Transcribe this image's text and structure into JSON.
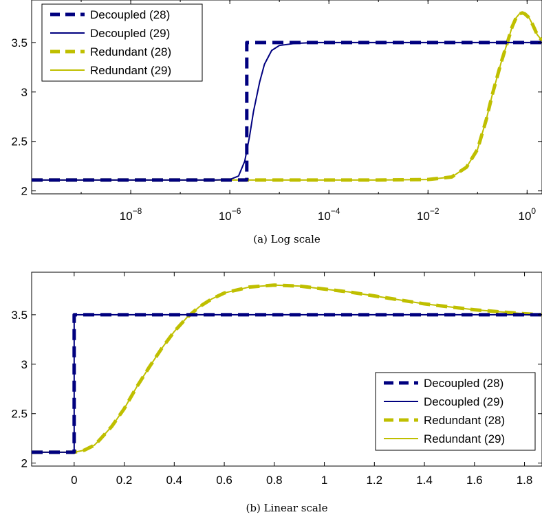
{
  "colors": {
    "decoupled": "#00007f",
    "redundant": "#bfbf00"
  },
  "chart_data": [
    {
      "type": "line",
      "caption": "(a)  Log scale",
      "xscale": "log",
      "xlim": [
        1e-10,
        2
      ],
      "ylim": [
        1.97,
        3.93
      ],
      "yticks": [
        2,
        2.5,
        3,
        3.5
      ],
      "ytick_labels": [
        "2",
        "2.5",
        "3",
        "3.5"
      ],
      "xticks": [
        {
          "value": 1e-08,
          "base": "10",
          "exp": "−8"
        },
        {
          "value": 1e-06,
          "base": "10",
          "exp": "−6"
        },
        {
          "value": 0.0001,
          "base": "10",
          "exp": "−4"
        },
        {
          "value": 0.01,
          "base": "10",
          "exp": "−2"
        },
        {
          "value": 1,
          "base": "10",
          "exp": "0"
        }
      ],
      "legend_position": "top-left",
      "series": [
        {
          "name": "Decoupled (28)",
          "color": "decoupled",
          "style": "dashed-thick",
          "points": [
            [
              1e-10,
              2.11
            ],
            [
              2.2e-06,
              2.11
            ],
            [
              2.2e-06,
              3.5
            ],
            [
              2,
              3.5
            ]
          ]
        },
        {
          "name": "Decoupled (29)",
          "color": "decoupled",
          "style": "solid",
          "points": [
            [
              1e-10,
              2.11
            ],
            [
              5e-07,
              2.11
            ],
            [
              1e-06,
              2.115
            ],
            [
              1.5e-06,
              2.15
            ],
            [
              2e-06,
              2.3
            ],
            [
              2.5e-06,
              2.55
            ],
            [
              3e-06,
              2.8
            ],
            [
              4e-06,
              3.1
            ],
            [
              5e-06,
              3.28
            ],
            [
              7e-06,
              3.42
            ],
            [
              1e-05,
              3.47
            ],
            [
              2e-05,
              3.49
            ],
            [
              5e-05,
              3.5
            ],
            [
              2,
              3.5
            ]
          ]
        },
        {
          "name": "Redundant (28)",
          "color": "redundant",
          "style": "dashed-thick",
          "points": [
            [
              1e-10,
              2.11
            ],
            [
              0.001,
              2.11
            ],
            [
              0.01,
              2.115
            ],
            [
              0.03,
              2.14
            ],
            [
              0.06,
              2.24
            ],
            [
              0.1,
              2.42
            ],
            [
              0.15,
              2.72
            ],
            [
              0.2,
              2.98
            ],
            [
              0.3,
              3.3
            ],
            [
              0.4,
              3.5
            ],
            [
              0.5,
              3.66
            ],
            [
              0.6,
              3.75
            ],
            [
              0.7,
              3.79
            ],
            [
              0.8,
              3.8
            ],
            [
              0.9,
              3.79
            ],
            [
              1.1,
              3.75
            ],
            [
              1.3,
              3.68
            ],
            [
              1.6,
              3.58
            ],
            [
              2,
              3.52
            ]
          ]
        },
        {
          "name": "Redundant (29)",
          "color": "redundant",
          "style": "solid",
          "points": [
            [
              1e-10,
              2.11
            ],
            [
              0.001,
              2.11
            ],
            [
              0.01,
              2.115
            ],
            [
              0.03,
              2.14
            ],
            [
              0.06,
              2.24
            ],
            [
              0.1,
              2.42
            ],
            [
              0.15,
              2.72
            ],
            [
              0.2,
              2.98
            ],
            [
              0.3,
              3.3
            ],
            [
              0.4,
              3.5
            ],
            [
              0.5,
              3.66
            ],
            [
              0.6,
              3.75
            ],
            [
              0.7,
              3.79
            ],
            [
              0.8,
              3.8
            ],
            [
              0.9,
              3.79
            ],
            [
              1.1,
              3.75
            ],
            [
              1.3,
              3.68
            ],
            [
              1.6,
              3.58
            ],
            [
              2,
              3.52
            ]
          ]
        }
      ]
    },
    {
      "type": "line",
      "caption": "(b)  Linear scale",
      "xscale": "linear",
      "xlim": [
        -0.17,
        1.87
      ],
      "ylim": [
        1.97,
        3.93
      ],
      "yticks": [
        2,
        2.5,
        3,
        3.5
      ],
      "ytick_labels": [
        "2",
        "2.5",
        "3",
        "3.5"
      ],
      "xticks": [
        0,
        0.2,
        0.4,
        0.6,
        0.8,
        1,
        1.2,
        1.4,
        1.6,
        1.8
      ],
      "xtick_labels": [
        "0",
        "0.2",
        "0.4",
        "0.6",
        "0.8",
        "1",
        "1.2",
        "1.4",
        "1.6",
        "1.8"
      ],
      "legend_position": "bottom-right",
      "series": [
        {
          "name": "Decoupled (28)",
          "color": "decoupled",
          "style": "dashed-thick",
          "points": [
            [
              -0.17,
              2.11
            ],
            [
              0.0,
              2.11
            ],
            [
              0.0,
              3.5
            ],
            [
              1.87,
              3.5
            ]
          ]
        },
        {
          "name": "Decoupled (29)",
          "color": "decoupled",
          "style": "solid",
          "points": [
            [
              -0.17,
              2.11
            ],
            [
              0.0,
              2.11
            ],
            [
              0.0,
              3.5
            ],
            [
              1.87,
              3.5
            ]
          ]
        },
        {
          "name": "Redundant (28)",
          "color": "redundant",
          "style": "dashed-thick",
          "points": [
            [
              -0.17,
              2.11
            ],
            [
              0.0,
              2.11
            ],
            [
              0.04,
              2.13
            ],
            [
              0.08,
              2.18
            ],
            [
              0.1,
              2.23
            ],
            [
              0.15,
              2.37
            ],
            [
              0.2,
              2.55
            ],
            [
              0.25,
              2.77
            ],
            [
              0.3,
              2.97
            ],
            [
              0.35,
              3.16
            ],
            [
              0.4,
              3.33
            ],
            [
              0.45,
              3.47
            ],
            [
              0.5,
              3.58
            ],
            [
              0.55,
              3.66
            ],
            [
              0.6,
              3.72
            ],
            [
              0.7,
              3.78
            ],
            [
              0.8,
              3.8
            ],
            [
              0.9,
              3.79
            ],
            [
              1.0,
              3.76
            ],
            [
              1.1,
              3.73
            ],
            [
              1.2,
              3.69
            ],
            [
              1.3,
              3.65
            ],
            [
              1.4,
              3.61
            ],
            [
              1.5,
              3.58
            ],
            [
              1.6,
              3.55
            ],
            [
              1.7,
              3.53
            ],
            [
              1.8,
              3.51
            ],
            [
              1.87,
              3.5
            ]
          ]
        },
        {
          "name": "Redundant (29)",
          "color": "redundant",
          "style": "solid",
          "points": [
            [
              -0.17,
              2.11
            ],
            [
              0.0,
              2.11
            ],
            [
              0.04,
              2.13
            ],
            [
              0.08,
              2.18
            ],
            [
              0.1,
              2.23
            ],
            [
              0.15,
              2.37
            ],
            [
              0.2,
              2.55
            ],
            [
              0.25,
              2.77
            ],
            [
              0.3,
              2.97
            ],
            [
              0.35,
              3.16
            ],
            [
              0.4,
              3.33
            ],
            [
              0.45,
              3.47
            ],
            [
              0.5,
              3.58
            ],
            [
              0.55,
              3.66
            ],
            [
              0.6,
              3.72
            ],
            [
              0.7,
              3.78
            ],
            [
              0.8,
              3.8
            ],
            [
              0.9,
              3.79
            ],
            [
              1.0,
              3.76
            ],
            [
              1.1,
              3.73
            ],
            [
              1.2,
              3.69
            ],
            [
              1.3,
              3.65
            ],
            [
              1.4,
              3.61
            ],
            [
              1.5,
              3.58
            ],
            [
              1.6,
              3.55
            ],
            [
              1.7,
              3.53
            ],
            [
              1.8,
              3.51
            ],
            [
              1.87,
              3.5
            ]
          ]
        }
      ]
    }
  ]
}
